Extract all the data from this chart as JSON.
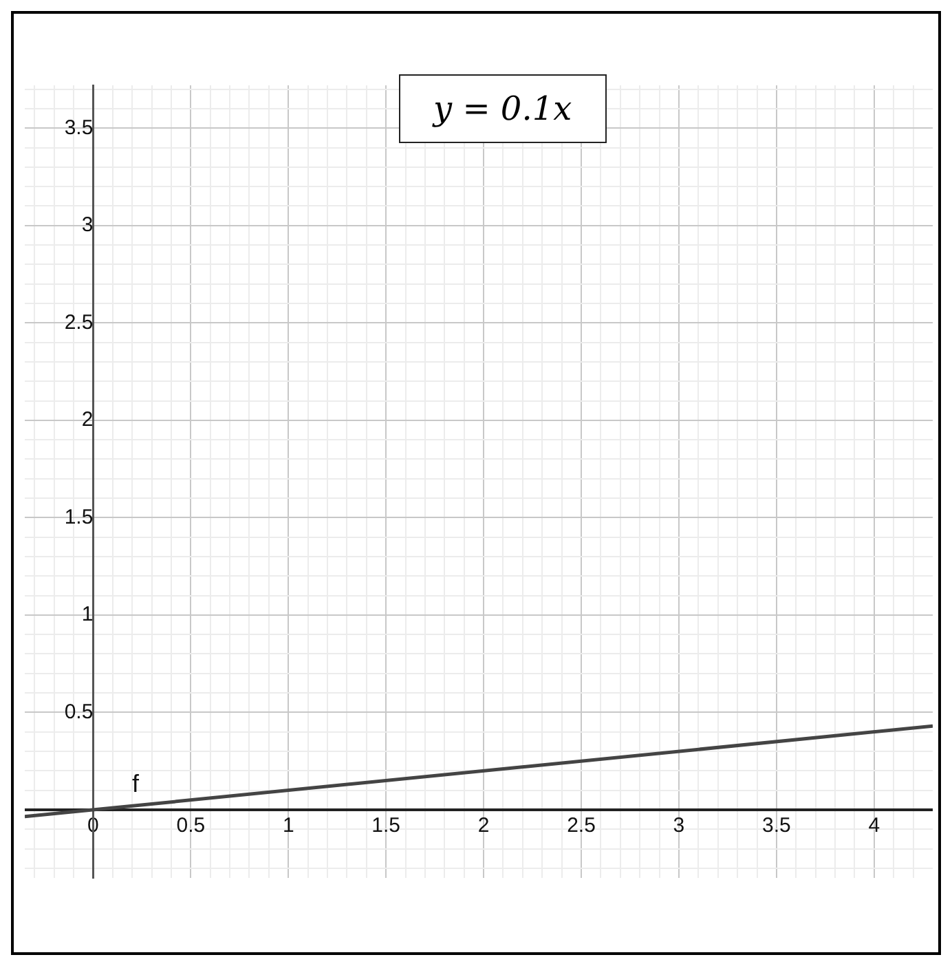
{
  "chart_data": {
    "type": "line",
    "annotations": [
      "y = 0.1x"
    ],
    "x": [
      -0.35,
      4.3
    ],
    "series": [
      {
        "name": "f",
        "color": "#444444",
        "values": [
          -0.035,
          0.43
        ]
      }
    ],
    "xlim": [
      -0.35,
      4.3
    ],
    "ylim": [
      -0.35,
      3.72
    ],
    "xticks": [
      {
        "value": -0.3,
        "label": null
      },
      {
        "value": -0.2,
        "label": null
      },
      {
        "value": -0.1,
        "label": null
      },
      0,
      {
        "value": 0.1,
        "label": null
      },
      {
        "value": 0.2,
        "label": null
      },
      {
        "value": 0.3,
        "label": null
      },
      {
        "value": 0.4,
        "label": null
      },
      0.5,
      {
        "value": 0.6,
        "label": null
      },
      {
        "value": 0.7,
        "label": null
      },
      {
        "value": 0.8,
        "label": null
      },
      {
        "value": 0.9,
        "label": null
      },
      1,
      {
        "value": 1.1,
        "label": null
      },
      {
        "value": 1.2,
        "label": null
      },
      {
        "value": 1.3,
        "label": null
      },
      {
        "value": 1.4,
        "label": null
      },
      1.5,
      {
        "value": 1.6,
        "label": null
      },
      {
        "value": 1.7,
        "label": null
      },
      {
        "value": 1.8,
        "label": null
      },
      {
        "value": 1.9,
        "label": null
      },
      2,
      {
        "value": 2.1,
        "label": null
      },
      {
        "value": 2.2,
        "label": null
      },
      {
        "value": 2.3,
        "label": null
      },
      {
        "value": 2.4,
        "label": null
      },
      2.5,
      {
        "value": 2.6,
        "label": null
      },
      {
        "value": 2.7,
        "label": null
      },
      {
        "value": 2.8,
        "label": null
      },
      {
        "value": 2.9,
        "label": null
      },
      3,
      {
        "value": 3.1,
        "label": null
      },
      {
        "value": 3.2,
        "label": null
      },
      {
        "value": 3.3,
        "label": null
      },
      {
        "value": 3.4,
        "label": null
      },
      3.5,
      {
        "value": 3.6,
        "label": null
      },
      {
        "value": 3.7,
        "label": null
      },
      {
        "value": 3.8,
        "label": null
      },
      {
        "value": 3.9,
        "label": null
      },
      4,
      {
        "value": 4.1,
        "label": null
      },
      {
        "value": 4.2,
        "label": null
      }
    ],
    "yticks": [
      {
        "value": -0.3,
        "label": null
      },
      {
        "value": -0.2,
        "label": null
      },
      {
        "value": -0.1,
        "label": null
      },
      {
        "value": 0,
        "label": null
      },
      {
        "value": 0.1,
        "label": null
      },
      {
        "value": 0.2,
        "label": null
      },
      {
        "value": 0.3,
        "label": null
      },
      {
        "value": 0.4,
        "label": null
      },
      0.5,
      {
        "value": 0.6,
        "label": null
      },
      {
        "value": 0.7,
        "label": null
      },
      {
        "value": 0.8,
        "label": null
      },
      {
        "value": 0.9,
        "label": null
      },
      1,
      {
        "value": 1.1,
        "label": null
      },
      {
        "value": 1.2,
        "label": null
      },
      {
        "value": 1.3,
        "label": null
      },
      {
        "value": 1.4,
        "label": null
      },
      1.5,
      {
        "value": 1.6,
        "label": null
      },
      {
        "value": 1.7,
        "label": null
      },
      {
        "value": 1.8,
        "label": null
      },
      {
        "value": 1.9,
        "label": null
      },
      2,
      {
        "value": 2.1,
        "label": null
      },
      {
        "value": 2.2,
        "label": null
      },
      {
        "value": 2.3,
        "label": null
      },
      {
        "value": 2.4,
        "label": null
      },
      2.5,
      {
        "value": 2.6,
        "label": null
      },
      {
        "value": 2.7,
        "label": null
      },
      {
        "value": 2.8,
        "label": null
      },
      {
        "value": 2.9,
        "label": null
      },
      3,
      {
        "value": 3.1,
        "label": null
      },
      {
        "value": 3.2,
        "label": null
      },
      {
        "value": 3.3,
        "label": null
      },
      {
        "value": 3.4,
        "label": null
      },
      3.5,
      {
        "value": 3.6,
        "label": null
      },
      {
        "value": 3.7,
        "label": null
      }
    ],
    "grid": true,
    "legend": false,
    "marker": "none",
    "line_style": "solid"
  }
}
